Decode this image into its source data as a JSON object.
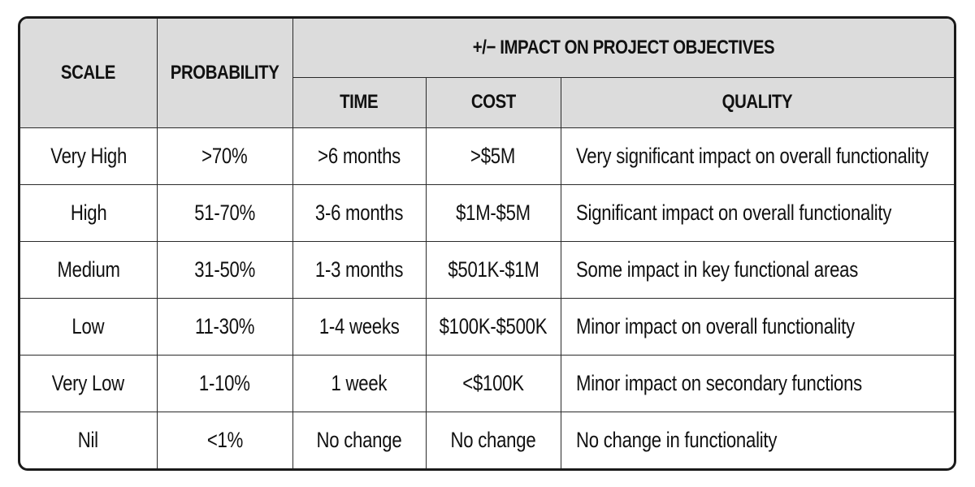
{
  "header": {
    "scale": "SCALE",
    "probability": "PROBABILITY",
    "impact_group": "+/− IMPACT ON PROJECT OBJECTIVES",
    "time": "TIME",
    "cost": "COST",
    "quality": "QUALITY"
  },
  "rows": [
    {
      "scale": "Very High",
      "probability": ">70%",
      "time": ">6 months",
      "cost": ">$5M",
      "quality": "Very significant impact on overall functionality"
    },
    {
      "scale": "High",
      "probability": "51-70%",
      "time": "3-6 months",
      "cost": "$1M-$5M",
      "quality": "Significant impact on overall functionality"
    },
    {
      "scale": "Medium",
      "probability": "31-50%",
      "time": "1-3 months",
      "cost": "$501K-$1M",
      "quality": "Some impact in key functional areas"
    },
    {
      "scale": "Low",
      "probability": "11-30%",
      "time": "1-4 weeks",
      "cost": "$100K-$500K",
      "quality": "Minor impact on overall functionality"
    },
    {
      "scale": "Very Low",
      "probability": "1-10%",
      "time": "1 week",
      "cost": "<$100K",
      "quality": "Minor impact on secondary functions"
    },
    {
      "scale": "Nil",
      "probability": "<1%",
      "time": "No change",
      "cost": "No change",
      "quality": "No change in functionality"
    }
  ]
}
